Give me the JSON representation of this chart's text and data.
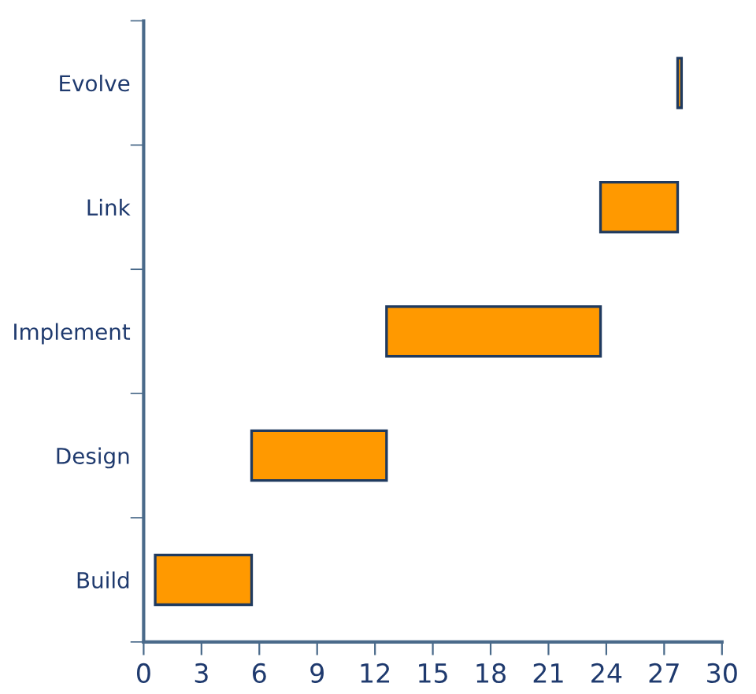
{
  "chart_data": {
    "type": "bar",
    "orientation": "horizontal",
    "categories": [
      "Evolve",
      "Link",
      "Implement",
      "Design",
      "Build"
    ],
    "base": [
      27.7,
      23.7,
      12.6,
      5.6,
      0.6
    ],
    "values": [
      0.2,
      4.0,
      11.1,
      7.0,
      5.0
    ],
    "color": "#ff9900",
    "xlim": [
      0,
      30
    ],
    "xticks": [
      0,
      3,
      6,
      9,
      12,
      15,
      18,
      21,
      24,
      27,
      30
    ],
    "grid": false,
    "legend": false
  }
}
